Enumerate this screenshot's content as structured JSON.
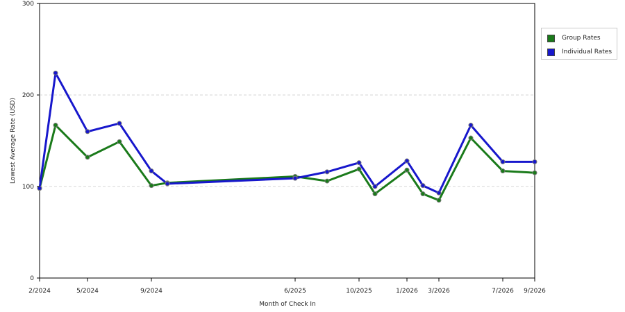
{
  "chart_data": {
    "type": "line",
    "xlabel": "Month of Check In",
    "ylabel": "Lowest Average Rate (USD)",
    "xticks": [
      "2/2024",
      "5/2024",
      "9/2024",
      "6/2025",
      "10/2025",
      "1/2026",
      "3/2026",
      "7/2026",
      "9/2026"
    ],
    "yticks": [
      "0",
      "100",
      "200",
      "300"
    ],
    "ylim": [
      0,
      300
    ],
    "grid": "dashed horizontal lines at 100 and 200",
    "legend": "right",
    "x": [
      "2/2024",
      "3/2024",
      "5/2024",
      "7/2024",
      "9/2024",
      "10/2024",
      "6/2025",
      "8/2025",
      "10/2025",
      "11/2025",
      "1/2026",
      "2/2026",
      "3/2026",
      "5/2026",
      "7/2026",
      "9/2026"
    ],
    "series": [
      {
        "name": "Group Rates",
        "color": "#1a7a1a",
        "values": [
          98,
          167,
          132,
          149,
          101,
          104,
          111,
          106,
          119,
          92,
          118,
          92,
          85,
          153,
          117,
          115
        ]
      },
      {
        "name": "Individual Rates",
        "color": "#1717cc",
        "values": [
          98,
          224,
          160,
          169,
          117,
          103,
          109,
          116,
          126,
          100,
          128,
          101,
          93,
          167,
          127,
          127
        ]
      }
    ]
  }
}
